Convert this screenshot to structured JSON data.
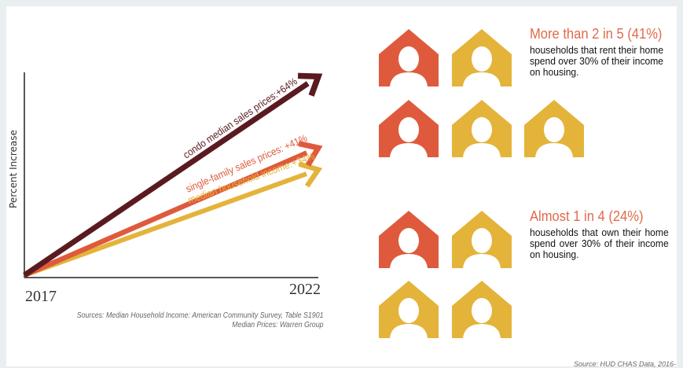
{
  "chart_data": {
    "type": "line",
    "ylabel": "Percent Increase",
    "x_categories": [
      "2017",
      "2022"
    ],
    "series": [
      {
        "name": "condo median sales prices:+64%",
        "values": [
          0,
          64
        ],
        "color": "#5a1b20"
      },
      {
        "name": "single-family sales prices: +41%",
        "values": [
          0,
          41
        ],
        "color": "#df5a3c"
      },
      {
        "name": "median household income:+34%",
        "values": [
          0,
          34
        ],
        "color": "#e4b33a"
      }
    ],
    "ylim": [
      0,
      70
    ],
    "grid": false,
    "legend": "inline"
  },
  "sources_line1": "Sources: Median Household Income: American Community Survey, Table S1901",
  "sources_line2": "Median Prices: Warren Group",
  "renters": {
    "headline": "More than 2 in 5 (41%)",
    "body": "households that rent their home spend over 30% of their income on housing.",
    "houses": [
      "#df5a3c",
      "#e4b33a",
      "#df5a3c",
      "#e4b33a",
      "#e4b33a"
    ]
  },
  "owners": {
    "headline": "Almost 1 in 4 (24%)",
    "body": "households that own their home spend over 30% of their income on housing.",
    "houses": [
      "#df5a3c",
      "#e4b33a",
      "#e4b33a",
      "#e4b33a"
    ]
  },
  "hud_source": "Source: HUD CHAS Data, 2016-"
}
